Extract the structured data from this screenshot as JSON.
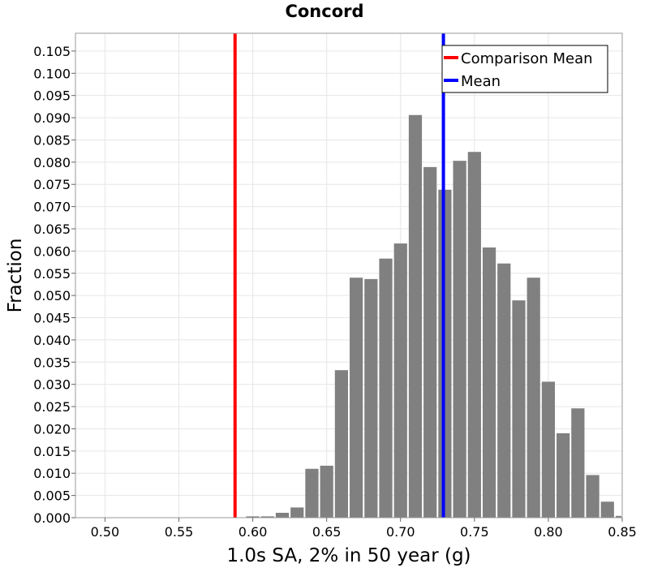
{
  "chart_data": {
    "type": "bar",
    "title": "Concord",
    "xlabel": "1.0s SA, 2% in 50 year (g)",
    "ylabel": "Fraction",
    "xlim": [
      0.48,
      0.85
    ],
    "ylim": [
      0.0,
      0.109
    ],
    "x_ticks": [
      "0.50",
      "0.55",
      "0.60",
      "0.65",
      "0.70",
      "0.75",
      "0.80",
      "0.85"
    ],
    "y_ticks": [
      "0.000",
      "0.005",
      "0.010",
      "0.015",
      "0.020",
      "0.025",
      "0.030",
      "0.035",
      "0.040",
      "0.045",
      "0.050",
      "0.055",
      "0.060",
      "0.065",
      "0.070",
      "0.075",
      "0.080",
      "0.085",
      "0.090",
      "0.095",
      "0.100",
      "0.105"
    ],
    "grid": true,
    "bin_width": 0.01,
    "bar_color": "#808080",
    "bins": [
      {
        "x": 0.6,
        "value": 0.0003
      },
      {
        "x": 0.61,
        "value": 0.0003
      },
      {
        "x": 0.62,
        "value": 0.0011
      },
      {
        "x": 0.63,
        "value": 0.0023
      },
      {
        "x": 0.64,
        "value": 0.011
      },
      {
        "x": 0.65,
        "value": 0.0117
      },
      {
        "x": 0.66,
        "value": 0.0332
      },
      {
        "x": 0.67,
        "value": 0.054
      },
      {
        "x": 0.68,
        "value": 0.0537
      },
      {
        "x": 0.69,
        "value": 0.0583
      },
      {
        "x": 0.7,
        "value": 0.0617
      },
      {
        "x": 0.71,
        "value": 0.0906
      },
      {
        "x": 0.72,
        "value": 0.0789
      },
      {
        "x": 0.73,
        "value": 0.0738
      },
      {
        "x": 0.74,
        "value": 0.0803
      },
      {
        "x": 0.75,
        "value": 0.0823
      },
      {
        "x": 0.76,
        "value": 0.0608
      },
      {
        "x": 0.77,
        "value": 0.0572
      },
      {
        "x": 0.78,
        "value": 0.0489
      },
      {
        "x": 0.79,
        "value": 0.054
      },
      {
        "x": 0.8,
        "value": 0.0306
      },
      {
        "x": 0.81,
        "value": 0.019
      },
      {
        "x": 0.82,
        "value": 0.0246
      },
      {
        "x": 0.83,
        "value": 0.0096
      },
      {
        "x": 0.84,
        "value": 0.0036
      },
      {
        "x": 0.85,
        "value": 0.0004
      }
    ],
    "lines": [
      {
        "name": "Comparison Mean",
        "x": 0.588,
        "color": "#ff0000"
      },
      {
        "name": "Mean",
        "x": 0.729,
        "color": "#0000ff"
      }
    ],
    "legend": {
      "position": "top-right"
    }
  }
}
